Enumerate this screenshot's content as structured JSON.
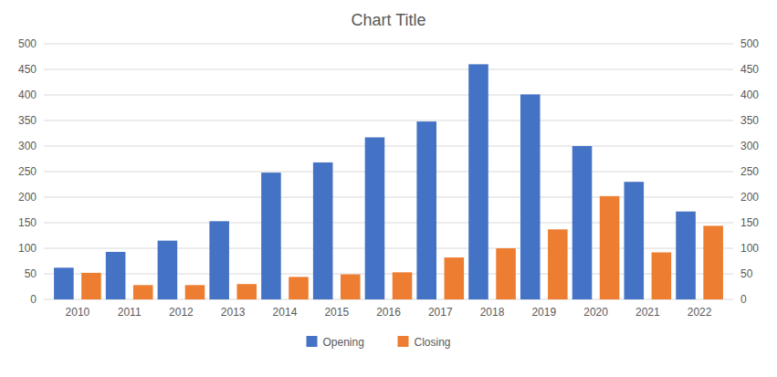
{
  "chart_data": {
    "type": "bar",
    "title": "Chart Title",
    "categories": [
      "2010",
      "2011",
      "2012",
      "2013",
      "2014",
      "2015",
      "2016",
      "2017",
      "2018",
      "2019",
      "2020",
      "2021",
      "2022"
    ],
    "series": [
      {
        "name": "Opening",
        "color": "#4472C4",
        "values": [
          62,
          93,
          115,
          153,
          248,
          268,
          317,
          348,
          460,
          401,
          300,
          230,
          172
        ]
      },
      {
        "name": "Closing",
        "color": "#ED7D31",
        "values": [
          52,
          28,
          28,
          30,
          44,
          49,
          53,
          82,
          100,
          137,
          202,
          92,
          144
        ]
      }
    ],
    "ylim": [
      0,
      500
    ],
    "yticks": [
      0,
      50,
      100,
      150,
      200,
      250,
      300,
      350,
      400,
      450,
      500
    ],
    "y2lim": [
      0,
      500
    ],
    "y2ticks": [
      0,
      50,
      100,
      150,
      200,
      250,
      300,
      350,
      400,
      450,
      500
    ],
    "grid": true,
    "legend": "bottom"
  }
}
